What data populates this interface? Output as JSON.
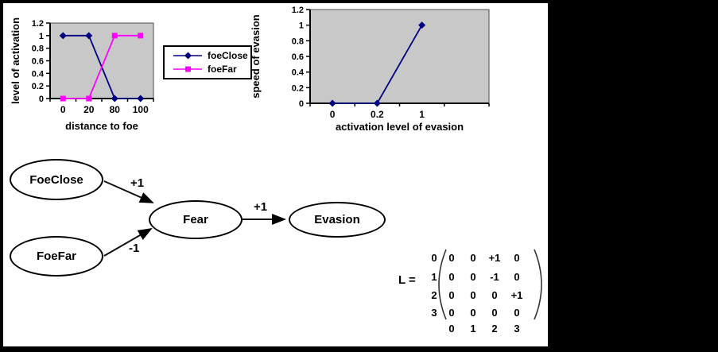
{
  "colors": {
    "frame": "#000000",
    "canvas": "#ffffff",
    "plot_background": "#c8c8c8",
    "foeClose_series": "#000080",
    "foeFar_series": "#ff00ff",
    "text": "#000000"
  },
  "chart_data": [
    {
      "type": "line",
      "title": "",
      "xlabel": "distance to foe",
      "ylabel": "level of activation",
      "categories": [
        "0",
        "20",
        "80",
        "100"
      ],
      "series": [
        {
          "name": "foeClose",
          "color": "#000080",
          "marker": "diamond",
          "values": [
            1,
            1,
            0,
            0
          ]
        },
        {
          "name": "foeFar",
          "color": "#ff00ff",
          "marker": "square",
          "values": [
            0,
            0,
            1,
            1
          ]
        }
      ],
      "ylim": [
        0,
        1.2
      ],
      "yticks": [
        0,
        0.2,
        0.4,
        0.6,
        0.8,
        1,
        1.2
      ],
      "plot_bg": "#c8c8c8",
      "grid": false,
      "legend_position": "right"
    },
    {
      "type": "line",
      "title": "",
      "xlabel": "activation level of evasion",
      "ylabel": "speed of evasion",
      "categories": [
        "0",
        "0.2",
        "1",
        ""
      ],
      "series": [
        {
          "name": "",
          "color": "#000080",
          "marker": "diamond",
          "values": [
            0,
            0,
            1
          ]
        }
      ],
      "ylim": [
        0,
        1.2
      ],
      "yticks": [
        0,
        0.2,
        0.4,
        0.6,
        0.8,
        1,
        1.2
      ],
      "plot_bg": "#c8c8c8",
      "grid": false,
      "legend_position": "none"
    }
  ],
  "diagram": {
    "nodes": [
      {
        "id": "foeclose",
        "label": "FoeClose"
      },
      {
        "id": "foefar",
        "label": "FoeFar"
      },
      {
        "id": "fear",
        "label": "Fear"
      },
      {
        "id": "evasion",
        "label": "Evasion"
      }
    ],
    "edges": [
      {
        "from": "FoeClose",
        "to": "Fear",
        "weight": "+1"
      },
      {
        "from": "FoeFar",
        "to": "Fear",
        "weight": "-1"
      },
      {
        "from": "Fear",
        "to": "Evasion",
        "weight": "+1"
      }
    ]
  },
  "matrix": {
    "name": "L",
    "equals": "L =",
    "row_labels": [
      "0",
      "1",
      "2",
      "3"
    ],
    "col_labels": [
      "0",
      "1",
      "2",
      "3"
    ],
    "rows": [
      [
        "0",
        "0",
        "+1",
        "0"
      ],
      [
        "0",
        "0",
        "-1",
        "0"
      ],
      [
        "0",
        "0",
        "0",
        "+1"
      ],
      [
        "0",
        "0",
        "0",
        "0"
      ]
    ]
  }
}
